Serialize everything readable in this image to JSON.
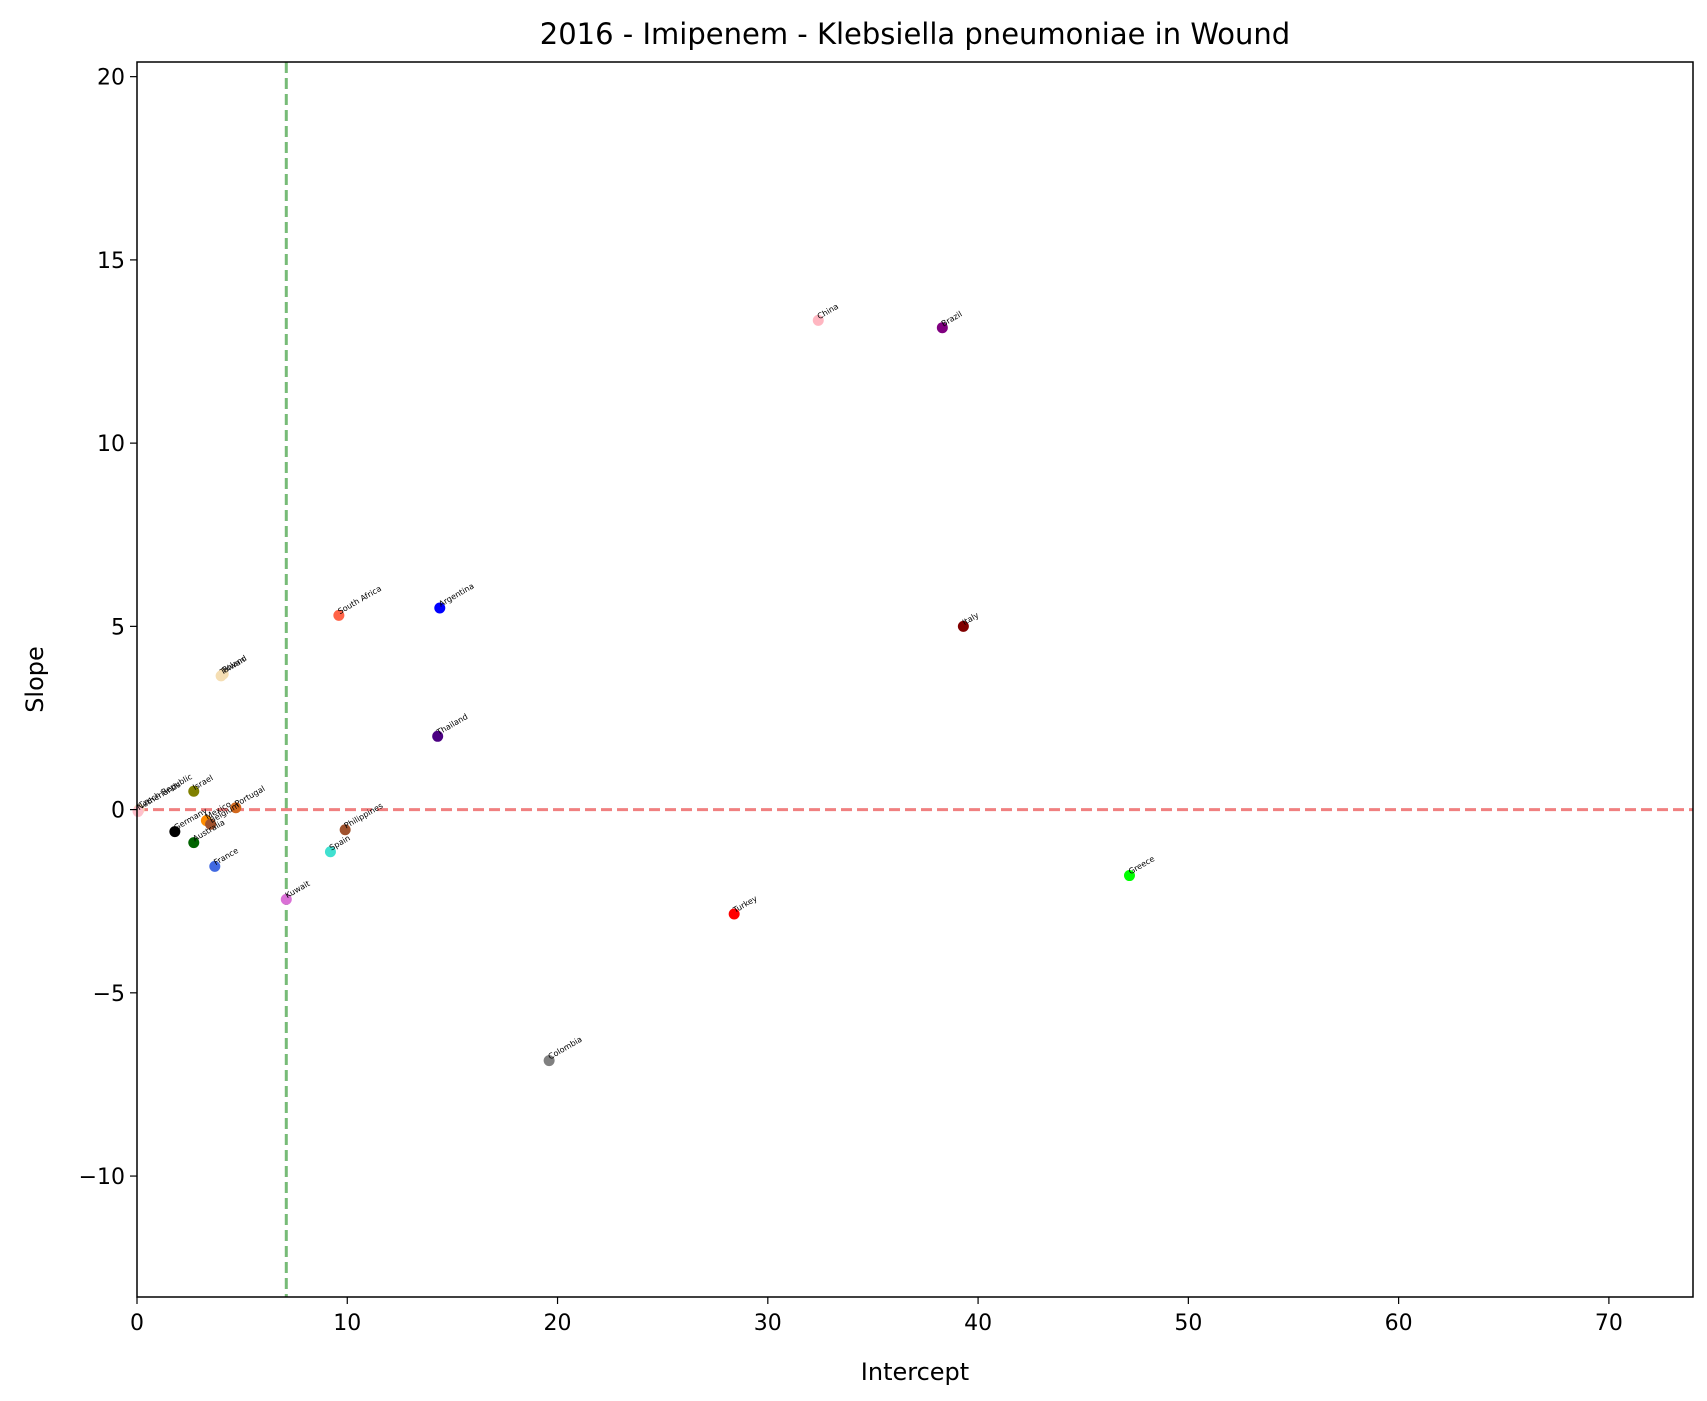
{
  "chart_data": {
    "type": "scatter",
    "title": "2016 - Imipenem - Klebsiella pneumoniae in Wound",
    "xlabel": "Intercept",
    "ylabel": "Slope",
    "xlim": [
      0,
      74
    ],
    "ylim": [
      -13.3,
      20.4
    ],
    "xticks": [
      0,
      10,
      20,
      30,
      40,
      50,
      60,
      70
    ],
    "yticks": [
      -10,
      -5,
      0,
      5,
      10,
      15,
      20
    ],
    "ytick_labels": [
      "−10",
      "−5",
      "0",
      "5",
      "10",
      "15",
      "20"
    ],
    "grid": false,
    "reference_lines": [
      {
        "orientation": "vertical",
        "value": 7.1,
        "color": "#77bb77",
        "style": "dashed"
      },
      {
        "orientation": "horizontal",
        "value": 0,
        "color": "#f08080",
        "style": "dashed"
      }
    ],
    "points": [
      {
        "label": "China",
        "x": 32.4,
        "y": 13.35,
        "color": "#ffb6c1"
      },
      {
        "label": "Brazil",
        "x": 38.3,
        "y": 13.15,
        "color": "#800080"
      },
      {
        "label": "Italy",
        "x": 39.3,
        "y": 5.0,
        "color": "#800000"
      },
      {
        "label": "South Africa",
        "x": 9.6,
        "y": 5.3,
        "color": "#ff6347"
      },
      {
        "label": "Argentina",
        "x": 14.4,
        "y": 5.5,
        "color": "#0000ff"
      },
      {
        "label": "Thailand",
        "x": 14.3,
        "y": 2.0,
        "color": "#4b0082"
      },
      {
        "label": "Taiwan",
        "x": 4.0,
        "y": 3.65,
        "color": "#f5deb3"
      },
      {
        "label": "Poland",
        "x": 4.1,
        "y": 3.7,
        "color": "#f5deb3"
      },
      {
        "label": "Czech Republic",
        "x": 0.1,
        "y": 0.0,
        "color": "#f5deb3"
      },
      {
        "label": "Netherlands",
        "x": 0.05,
        "y": -0.05,
        "color": "#ffc0cb"
      },
      {
        "label": "Israel",
        "x": 2.7,
        "y": 0.5,
        "color": "#808000"
      },
      {
        "label": "Portugal",
        "x": 4.7,
        "y": 0.05,
        "color": "#d2691e"
      },
      {
        "label": "Mexico",
        "x": 3.3,
        "y": -0.3,
        "color": "#ff8c00"
      },
      {
        "label": "Belgium",
        "x": 3.5,
        "y": -0.4,
        "color": "#a0522d"
      },
      {
        "label": "Germany",
        "x": 1.8,
        "y": -0.6,
        "color": "#000000"
      },
      {
        "label": "Australia",
        "x": 2.7,
        "y": -0.9,
        "color": "#006400"
      },
      {
        "label": "France",
        "x": 3.7,
        "y": -1.55,
        "color": "#4169e1"
      },
      {
        "label": "Philippines",
        "x": 9.9,
        "y": -0.55,
        "color": "#a0522d"
      },
      {
        "label": "Spain",
        "x": 9.2,
        "y": -1.15,
        "color": "#40e0d0"
      },
      {
        "label": "Kuwait",
        "x": 7.1,
        "y": -2.45,
        "color": "#da70d6"
      },
      {
        "label": "Greece",
        "x": 47.2,
        "y": -1.8,
        "color": "#00ff00"
      },
      {
        "label": "Turkey",
        "x": 28.4,
        "y": -2.85,
        "color": "#ff0000"
      },
      {
        "label": "Colombia",
        "x": 19.6,
        "y": -6.85,
        "color": "#808080"
      }
    ]
  }
}
